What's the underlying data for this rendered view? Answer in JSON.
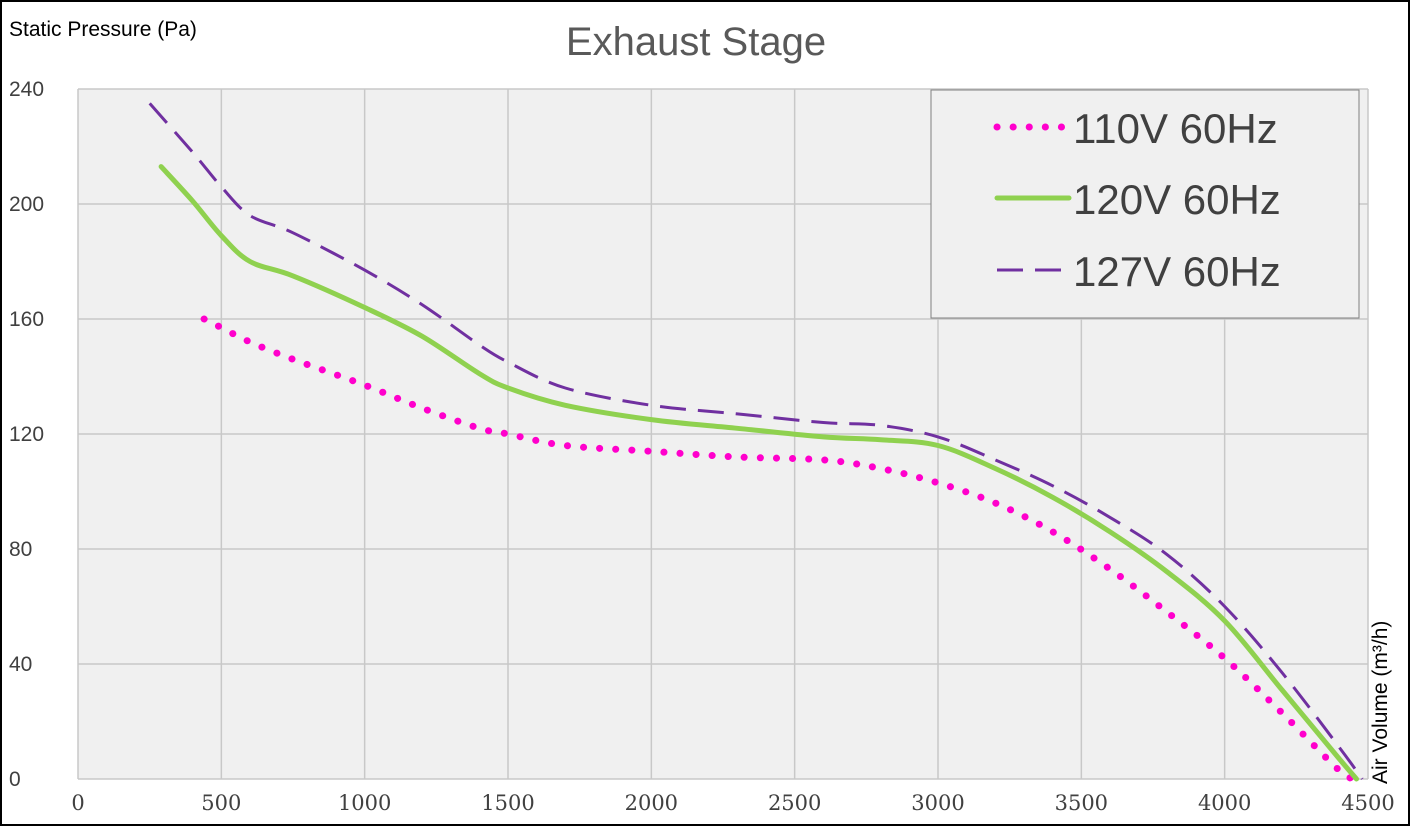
{
  "chart_data": {
    "type": "line",
    "title": "Exhaust Stage",
    "ylabel": "Static Pressure (Pa)",
    "xlabel": "Air Volume (m³/h)",
    "xlim": [
      0,
      4500
    ],
    "ylim": [
      0,
      240
    ],
    "xticks": [
      0,
      500,
      1000,
      1500,
      2000,
      2500,
      3000,
      3500,
      4000,
      4500
    ],
    "yticks": [
      0,
      40,
      80,
      120,
      160,
      200,
      240
    ],
    "grid": true,
    "legend_position": "top-right",
    "series": [
      {
        "name": "110V 60Hz",
        "style": "dotted",
        "color": "#ff00cc",
        "x": [
          440,
          500,
          600,
          750,
          1000,
          1200,
          1400,
          1500,
          1700,
          2000,
          2300,
          2600,
          2800,
          3000,
          3200,
          3400,
          3600,
          3800,
          4000,
          4200,
          4400,
          4460
        ],
        "y": [
          160,
          157,
          152,
          146,
          137,
          129,
          122,
          120,
          116,
          114,
          112,
          111,
          108,
          103,
          96,
          86,
          73,
          58,
          42,
          23,
          3,
          0
        ]
      },
      {
        "name": "120V 60Hz",
        "style": "solid",
        "color": "#8fd14f",
        "x": [
          290,
          400,
          500,
          600,
          750,
          1000,
          1200,
          1400,
          1500,
          1700,
          2000,
          2300,
          2600,
          2800,
          3000,
          3200,
          3400,
          3600,
          3800,
          4000,
          4200,
          4400,
          4460
        ],
        "y": [
          213,
          201,
          189,
          180,
          175,
          164,
          154,
          141,
          136,
          130,
          125,
          122,
          119,
          118,
          116,
          108,
          98,
          86,
          72,
          55,
          31,
          7,
          0
        ]
      },
      {
        "name": "127V 60Hz",
        "style": "dashed",
        "color": "#7030a0",
        "x": [
          250,
          400,
          500,
          600,
          750,
          1000,
          1200,
          1400,
          1500,
          1700,
          2000,
          2300,
          2600,
          2800,
          3000,
          3200,
          3400,
          3600,
          3800,
          4000,
          4200,
          4400,
          4480
        ],
        "y": [
          235,
          218,
          206,
          196,
          190,
          177,
          165,
          151,
          145,
          136,
          130,
          127,
          124,
          123,
          119,
          111,
          102,
          91,
          78,
          60,
          37,
          11,
          0
        ]
      }
    ]
  }
}
